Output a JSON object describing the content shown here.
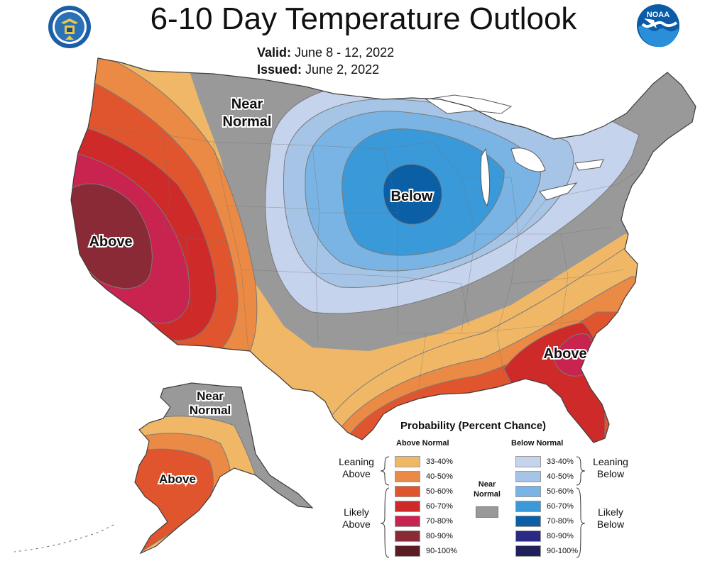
{
  "header": {
    "title": "6-10 Day Temperature Outlook",
    "valid_label": "Valid:",
    "valid_value": "June 8 - 12, 2022",
    "issued_label": "Issued:",
    "issued_value": "June 2, 2022"
  },
  "logos": {
    "left": "department-of-commerce-seal",
    "right": "noaa-logo"
  },
  "map_labels": {
    "near_normal_lower48": [
      "Near",
      "Normal"
    ],
    "below": "Below",
    "above_west": "Above",
    "above_southeast": "Above",
    "near_normal_alaska": [
      "Near",
      "Normal"
    ],
    "above_alaska": "Above"
  },
  "colors": {
    "above": [
      "#f0b866",
      "#ea8a44",
      "#e0552e",
      "#cf2a2a",
      "#c92350",
      "#8a2a36",
      "#5c1c24"
    ],
    "below": [
      "#c6d3ec",
      "#a6c5e6",
      "#79b4e4",
      "#3a9ad9",
      "#0a5fa5",
      "#2a2a86",
      "#22205a"
    ],
    "near_normal": "#999999"
  },
  "legend": {
    "title": "Probability (Percent Chance)",
    "above_header": "Above Normal",
    "below_header": "Below Normal",
    "near_normal_header": [
      "Near",
      "Normal"
    ],
    "above_items": [
      "33-40%",
      "40-50%",
      "50-60%",
      "60-70%",
      "70-80%",
      "80-90%",
      "90-100%"
    ],
    "below_items": [
      "33-40%",
      "40-50%",
      "50-60%",
      "60-70%",
      "70-80%",
      "80-90%",
      "90-100%"
    ],
    "leaning_above": [
      "Leaning",
      "Above"
    ],
    "likely_above": [
      "Likely",
      "Above"
    ],
    "leaning_below": [
      "Leaning",
      "Below"
    ],
    "likely_below": [
      "Likely",
      "Below"
    ]
  }
}
